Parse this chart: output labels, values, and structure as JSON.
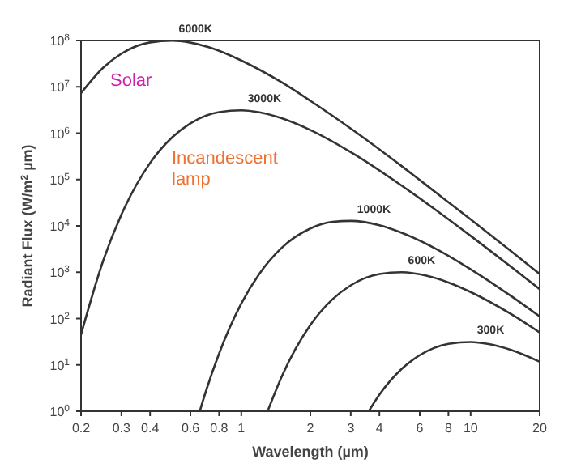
{
  "chart_data": {
    "type": "line",
    "xlabel": "Wavelength (µm)",
    "ylabel": "Radiant Flux (W/m$^{2}$ µm)",
    "log": "xy",
    "marker": "none",
    "line_style": "solid",
    "xlim": [
      0.2,
      20
    ],
    "xticks": [
      0.2,
      0.3,
      0.4,
      0.6,
      0.8,
      1,
      2,
      3,
      4,
      6,
      8,
      10,
      20
    ],
    "ylim": [
      1,
      100000000
    ],
    "yticks": [
      {
        "value": 1,
        "label": "10$^{0}$"
      },
      {
        "value": 10,
        "label": "10$^{1}$"
      },
      {
        "value": 100,
        "label": "10$^{2}$"
      },
      {
        "value": 1000,
        "label": "10$^{3}$"
      },
      {
        "value": 10000,
        "label": "10$^{4}$"
      },
      {
        "value": 100000,
        "label": "10$^{5}$"
      },
      {
        "value": 1000000,
        "label": "10$^{6}$"
      },
      {
        "value": 10000000,
        "label": "10$^{7}$"
      },
      {
        "value": 100000000,
        "label": "10$^{8}$"
      }
    ],
    "series": [
      {
        "name": "6000K",
        "color": "#333333",
        "x": [
          0.2,
          0.25,
          0.3,
          0.4,
          0.5,
          0.6,
          0.8,
          1,
          1.5,
          2,
          3,
          5,
          7,
          10,
          15,
          20
        ],
        "values": [
          7300000,
          26000000,
          52000000,
          91000000,
          99000000,
          90000000,
          60000000,
          37000000,
          12500000,
          5000000,
          1260000,
          195000,
          54000,
          13800,
          2850,
          917
        ]
      },
      {
        "name": "3000K",
        "color": "#333333",
        "x": [
          0.2,
          0.25,
          0.3,
          0.4,
          0.5,
          0.6,
          0.8,
          1,
          1.2,
          1.5,
          2,
          3,
          5,
          7,
          10,
          15,
          20
        ],
        "values": [
          45,
          1790,
          17500,
          227000,
          817000,
          1630000,
          2850000,
          3120000,
          2820000,
          2100000,
          1170000,
          390000,
          74000,
          22600,
          6080,
          1307,
          431
        ]
      },
      {
        "name": "1000K",
        "color": "#333333",
        "x": [
          0.66,
          0.7,
          0.8,
          1,
          1.2,
          1.5,
          2,
          2.5,
          3,
          4,
          5,
          7,
          10,
          15,
          20
        ],
        "values": [
          1.03,
          2.65,
          17.6,
          211,
          933,
          3365,
          8790,
          12200,
          12800,
          10300,
          7100,
          3270,
          1160,
          306,
          111
        ]
      },
      {
        "name": "600K",
        "color": "#333333",
        "x": [
          1.31,
          1.5,
          2,
          2.5,
          3,
          4,
          5,
          6,
          8,
          10,
          15,
          20
        ],
        "values": [
          1.08,
          5.6,
          72.6,
          261,
          520,
          913,
          998,
          901,
          601,
          374,
          125,
          50
        ]
      },
      {
        "name": "300K",
        "color": "#333333",
        "x": [
          3.6,
          4,
          5,
          6,
          8,
          10,
          12,
          15,
          20
        ],
        "values": [
          1.01,
          2.27,
          8.17,
          16.2,
          28.5,
          31.2,
          28.1,
          21,
          11.7
        ]
      }
    ],
    "annotations": [
      "Solar",
      "Incandescent lamp"
    ]
  }
}
